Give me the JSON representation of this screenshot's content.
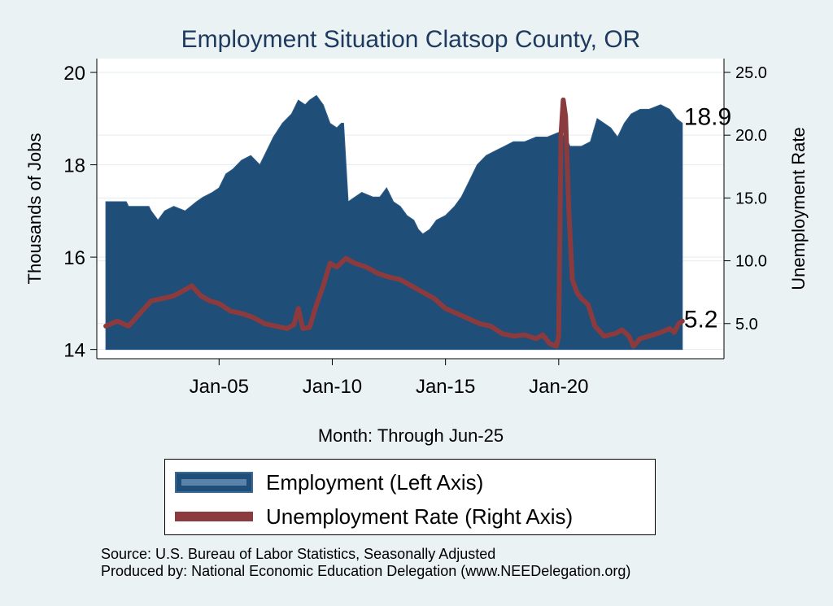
{
  "chart_data": {
    "type": "bar-line-dual-axis",
    "title": "Employment Situation Clatsop  County, OR",
    "xlabel": "Month: Through Jun-25",
    "ylabel_left": "Thousands of Jobs",
    "ylabel_right": "Unemployment Rate",
    "x_tick_labels": [
      "Jan-05",
      "Jan-10",
      "Jan-15",
      "Jan-20"
    ],
    "x_tick_years": [
      2005,
      2010,
      2015,
      2020
    ],
    "x_range": [
      1999.6,
      2027.3
    ],
    "left_axis": {
      "range": [
        13.8,
        20.3
      ],
      "ticks": [
        14,
        16,
        18,
        20
      ],
      "tick_labels": [
        "14",
        "16",
        "18",
        "20"
      ]
    },
    "right_axis": {
      "range": [
        2.2,
        26.1
      ],
      "ticks": [
        5,
        10,
        15,
        20,
        25
      ],
      "tick_labels": [
        "5.0",
        "10.0",
        "15.0",
        "20.0",
        "25.0"
      ]
    },
    "grid": true,
    "series": [
      {
        "name": "Employment (Left Axis)",
        "type": "area",
        "color": "#1f4e79",
        "points": [
          [
            2000.0,
            17.2
          ],
          [
            2000.9,
            17.2
          ],
          [
            2001.0,
            17.1
          ],
          [
            2001.9,
            17.1
          ],
          [
            2002.0,
            17.0
          ],
          [
            2002.3,
            16.8
          ],
          [
            2002.6,
            17.0
          ],
          [
            2003.0,
            17.1
          ],
          [
            2003.5,
            17.0
          ],
          [
            2004.0,
            17.2
          ],
          [
            2004.3,
            17.3
          ],
          [
            2004.7,
            17.4
          ],
          [
            2005.0,
            17.5
          ],
          [
            2005.3,
            17.8
          ],
          [
            2005.6,
            17.9
          ],
          [
            2006.0,
            18.1
          ],
          [
            2006.4,
            18.2
          ],
          [
            2006.8,
            18.0
          ],
          [
            2007.0,
            18.2
          ],
          [
            2007.4,
            18.6
          ],
          [
            2007.8,
            18.9
          ],
          [
            2008.2,
            19.1
          ],
          [
            2008.5,
            19.4
          ],
          [
            2008.8,
            19.3
          ],
          [
            2009.0,
            19.4
          ],
          [
            2009.3,
            19.5
          ],
          [
            2009.6,
            19.3
          ],
          [
            2009.9,
            18.9
          ],
          [
            2010.2,
            18.8
          ],
          [
            2010.4,
            18.9
          ],
          [
            2010.5,
            18.9
          ],
          [
            2010.7,
            17.2
          ],
          [
            2011.0,
            17.3
          ],
          [
            2011.3,
            17.4
          ],
          [
            2011.8,
            17.3
          ],
          [
            2012.1,
            17.3
          ],
          [
            2012.4,
            17.5
          ],
          [
            2012.7,
            17.2
          ],
          [
            2013.0,
            17.1
          ],
          [
            2013.3,
            16.9
          ],
          [
            2013.6,
            16.8
          ],
          [
            2013.8,
            16.6
          ],
          [
            2014.0,
            16.5
          ],
          [
            2014.3,
            16.6
          ],
          [
            2014.6,
            16.8
          ],
          [
            2015.0,
            16.9
          ],
          [
            2015.4,
            17.1
          ],
          [
            2015.7,
            17.3
          ],
          [
            2016.0,
            17.6
          ],
          [
            2016.4,
            18.0
          ],
          [
            2016.8,
            18.2
          ],
          [
            2017.2,
            18.3
          ],
          [
            2017.6,
            18.4
          ],
          [
            2018.0,
            18.5
          ],
          [
            2018.5,
            18.5
          ],
          [
            2019.0,
            18.6
          ],
          [
            2019.5,
            18.6
          ],
          [
            2020.0,
            18.7
          ],
          [
            2020.3,
            18.6
          ],
          [
            2020.5,
            18.4
          ],
          [
            2021.0,
            18.4
          ],
          [
            2021.4,
            18.5
          ],
          [
            2021.7,
            19.0
          ],
          [
            2022.0,
            18.9
          ],
          [
            2022.3,
            18.8
          ],
          [
            2022.6,
            18.6
          ],
          [
            2022.9,
            18.9
          ],
          [
            2023.2,
            19.1
          ],
          [
            2023.6,
            19.2
          ],
          [
            2024.0,
            19.2
          ],
          [
            2024.5,
            19.3
          ],
          [
            2024.9,
            19.2
          ],
          [
            2025.2,
            19.0
          ],
          [
            2025.46,
            18.9
          ]
        ],
        "end_label": "18.9"
      },
      {
        "name": "Unemployment Rate (Right Axis)",
        "type": "line",
        "color": "#8b3a3e",
        "points": [
          [
            2000.0,
            4.8
          ],
          [
            2000.5,
            5.2
          ],
          [
            2001.0,
            4.8
          ],
          [
            2001.5,
            5.8
          ],
          [
            2002.0,
            6.8
          ],
          [
            2002.5,
            7.0
          ],
          [
            2003.0,
            7.2
          ],
          [
            2003.4,
            7.6
          ],
          [
            2003.8,
            8.0
          ],
          [
            2004.2,
            7.2
          ],
          [
            2004.6,
            6.8
          ],
          [
            2005.0,
            6.6
          ],
          [
            2005.5,
            6.0
          ],
          [
            2006.0,
            5.8
          ],
          [
            2006.5,
            5.5
          ],
          [
            2007.0,
            5.0
          ],
          [
            2007.5,
            4.8
          ],
          [
            2008.0,
            4.6
          ],
          [
            2008.3,
            4.9
          ],
          [
            2008.5,
            6.2
          ],
          [
            2008.7,
            4.6
          ],
          [
            2009.0,
            4.7
          ],
          [
            2009.3,
            6.5
          ],
          [
            2009.6,
            8.0
          ],
          [
            2009.9,
            9.8
          ],
          [
            2010.2,
            9.5
          ],
          [
            2010.6,
            10.2
          ],
          [
            2011.0,
            9.8
          ],
          [
            2011.5,
            9.5
          ],
          [
            2012.0,
            9.0
          ],
          [
            2012.5,
            8.7
          ],
          [
            2013.0,
            8.5
          ],
          [
            2013.5,
            8.0
          ],
          [
            2014.0,
            7.5
          ],
          [
            2014.5,
            7.0
          ],
          [
            2015.0,
            6.2
          ],
          [
            2015.5,
            5.8
          ],
          [
            2016.0,
            5.4
          ],
          [
            2016.5,
            5.0
          ],
          [
            2017.0,
            4.8
          ],
          [
            2017.5,
            4.2
          ],
          [
            2018.0,
            4.0
          ],
          [
            2018.5,
            4.1
          ],
          [
            2019.0,
            3.8
          ],
          [
            2019.3,
            4.1
          ],
          [
            2019.6,
            3.4
          ],
          [
            2019.9,
            3.2
          ],
          [
            2020.0,
            4.0
          ],
          [
            2020.1,
            20.0
          ],
          [
            2020.2,
            22.8
          ],
          [
            2020.3,
            21.5
          ],
          [
            2020.45,
            14.0
          ],
          [
            2020.6,
            8.5
          ],
          [
            2020.8,
            7.5
          ],
          [
            2021.0,
            7.0
          ],
          [
            2021.3,
            6.5
          ],
          [
            2021.6,
            4.8
          ],
          [
            2022.0,
            4.0
          ],
          [
            2022.5,
            4.2
          ],
          [
            2022.8,
            4.5
          ],
          [
            2023.1,
            4.0
          ],
          [
            2023.3,
            3.2
          ],
          [
            2023.6,
            3.8
          ],
          [
            2024.0,
            4.0
          ],
          [
            2024.5,
            4.3
          ],
          [
            2024.9,
            4.6
          ],
          [
            2025.1,
            4.3
          ],
          [
            2025.3,
            5.0
          ],
          [
            2025.46,
            5.2
          ]
        ],
        "end_label": "5.2"
      }
    ],
    "legend": [
      "Employment (Left Axis)",
      "Unemployment Rate (Right Axis)"
    ],
    "source_lines": [
      "Source: U.S. Bureau of Labor Statistics, Seasonally Adjusted",
      "Produced by: National Economic Education Delegation (www.NEEDelegation.org)"
    ]
  }
}
